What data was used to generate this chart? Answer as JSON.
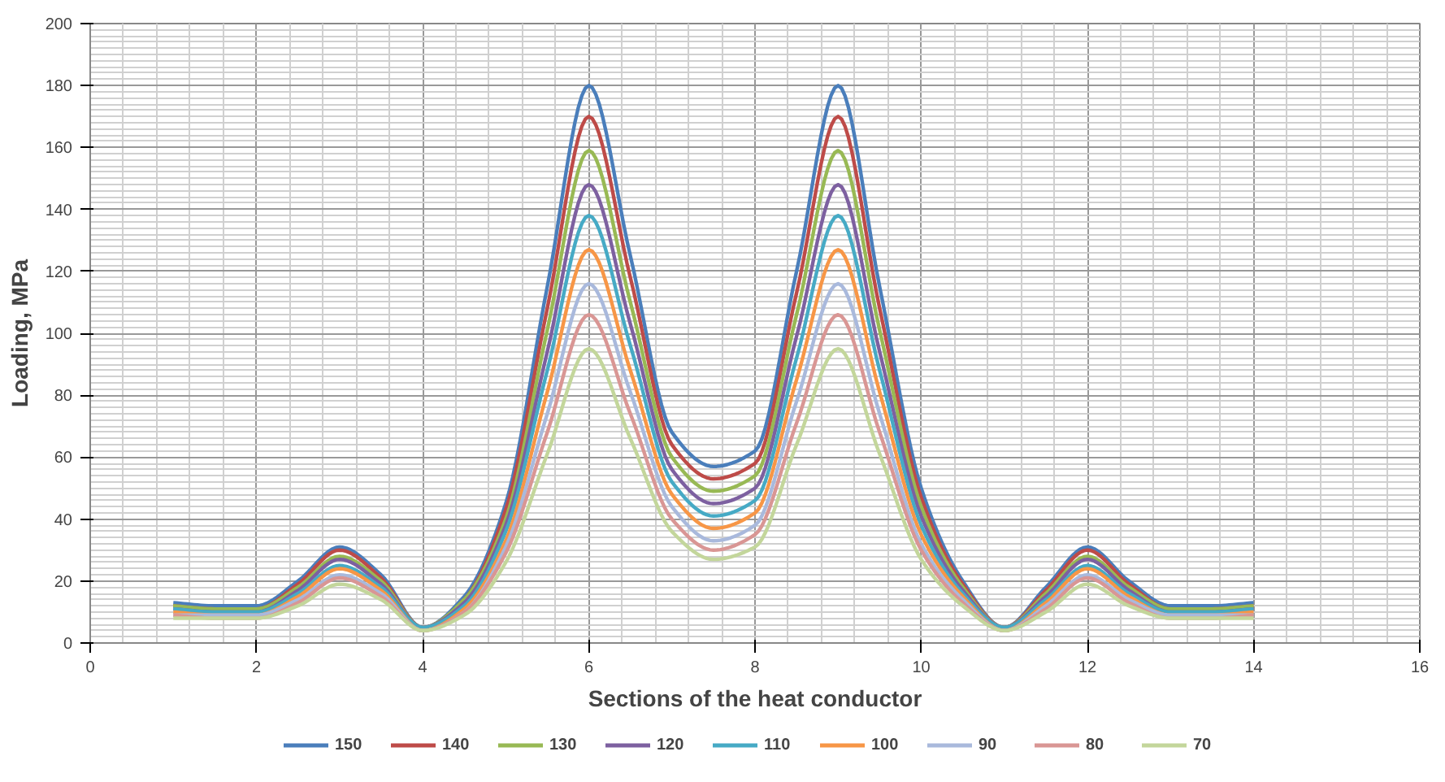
{
  "chart_data": {
    "type": "line",
    "xlabel": "Sections of the heat conductor",
    "ylabel": "Loading, MPa",
    "x": [
      1,
      1.5,
      2,
      2.5,
      3,
      3.5,
      4,
      4.5,
      5,
      5.5,
      6,
      6.5,
      7,
      7.5,
      8,
      8.5,
      9,
      9.5,
      10,
      10.5,
      11,
      11.5,
      12,
      12.5,
      13,
      13.5,
      14
    ],
    "xlim": [
      0,
      16
    ],
    "xticks": [
      0,
      2,
      4,
      6,
      8,
      10,
      12,
      14,
      16
    ],
    "ylim": [
      0,
      200
    ],
    "yticks": [
      0,
      20,
      40,
      60,
      80,
      100,
      120,
      140,
      160,
      180,
      200
    ],
    "grid": true,
    "legend": "bottom",
    "marker": "none",
    "line_style": "solid",
    "series": [
      {
        "name": "150",
        "color": "#4a7ebb",
        "values": [
          13,
          12,
          12,
          20,
          31,
          22,
          5,
          15,
          45,
          115,
          180,
          125,
          68,
          57,
          62,
          120,
          180,
          115,
          50,
          20,
          5,
          18,
          31,
          20,
          12,
          12,
          13
        ]
      },
      {
        "name": "140",
        "color": "#be4b48",
        "values": [
          12,
          11,
          11,
          19,
          30,
          21,
          5,
          14,
          43,
          108,
          170,
          118,
          64,
          53,
          58,
          113,
          170,
          108,
          47,
          19,
          5,
          17,
          30,
          19,
          11,
          11,
          12
        ]
      },
      {
        "name": "130",
        "color": "#98b954",
        "values": [
          12,
          11,
          11,
          18,
          28,
          20,
          5,
          14,
          40,
          101,
          159,
          110,
          60,
          49,
          54,
          106,
          159,
          101,
          44,
          18,
          5,
          16,
          28,
          18,
          11,
          11,
          12
        ]
      },
      {
        "name": "120",
        "color": "#7d60a0",
        "values": [
          11,
          10,
          10,
          17,
          27,
          19,
          5,
          13,
          38,
          94,
          148,
          103,
          56,
          45,
          50,
          99,
          148,
          94,
          41,
          17,
          5,
          15,
          27,
          17,
          10,
          10,
          11
        ]
      },
      {
        "name": "110",
        "color": "#46aac5",
        "values": [
          11,
          10,
          10,
          16,
          25,
          18,
          5,
          12,
          36,
          88,
          138,
          96,
          52,
          41,
          46,
          92,
          138,
          88,
          38,
          16,
          5,
          14,
          25,
          16,
          10,
          10,
          11
        ]
      },
      {
        "name": "100",
        "color": "#f79646",
        "values": [
          10,
          9,
          9,
          15,
          24,
          17,
          4,
          11,
          33,
          81,
          127,
          88,
          48,
          37,
          42,
          85,
          127,
          81,
          35,
          15,
          4,
          13,
          24,
          15,
          9,
          9,
          10
        ]
      },
      {
        "name": "90",
        "color": "#a9b9dc",
        "values": [
          9,
          9,
          9,
          14,
          22,
          16,
          4,
          10,
          31,
          74,
          116,
          81,
          44,
          33,
          38,
          78,
          116,
          74,
          32,
          14,
          4,
          12,
          22,
          14,
          9,
          9,
          9
        ]
      },
      {
        "name": "80",
        "color": "#d99694",
        "values": [
          9,
          8,
          8,
          13,
          21,
          15,
          4,
          10,
          29,
          68,
          106,
          74,
          40,
          30,
          35,
          71,
          106,
          68,
          30,
          13,
          4,
          11,
          21,
          13,
          8,
          8,
          9
        ]
      },
      {
        "name": "70",
        "color": "#c3d69b",
        "values": [
          8,
          8,
          8,
          12,
          19,
          14,
          4,
          9,
          26,
          61,
          95,
          66,
          36,
          27,
          31,
          64,
          95,
          61,
          27,
          12,
          4,
          10,
          19,
          12,
          8,
          8,
          8
        ]
      }
    ]
  }
}
